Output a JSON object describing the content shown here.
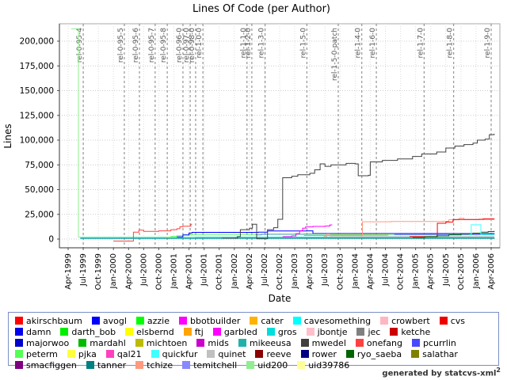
{
  "footer": {
    "text": "generated by statcvs-xml",
    "sup": "2"
  },
  "chart_data": {
    "type": "line",
    "title": "Lines Of Code (per Author)",
    "xlabel": "Date",
    "ylabel": "Lines",
    "ylim": [
      -5000,
      215000
    ],
    "grid": true,
    "legend_position": "bottom",
    "y_ticks": [
      0,
      25000,
      50000,
      75000,
      100000,
      125000,
      150000,
      175000,
      200000
    ],
    "y_tick_labels": [
      "0",
      "25,000",
      "50,000",
      "75,000",
      "100,000",
      "125,000",
      "150,000",
      "175,000",
      "200,000"
    ],
    "x_tick_labels": [
      "Apr-1999",
      "Jul-1999",
      "Oct-1999",
      "Jan-2000",
      "Apr-2000",
      "Jul-2000",
      "Oct-2000",
      "Jan-2001",
      "Apr-2001",
      "Jul-2001",
      "Oct-2001",
      "Jan-2002",
      "Apr-2002",
      "Jul-2002",
      "Oct-2002",
      "Jan-2003",
      "Apr-2003",
      "Jul-2003",
      "Oct-2003",
      "Jan-2004",
      "Apr-2004",
      "Jul-2004",
      "Oct-2004",
      "Jan-2005",
      "Apr-2005",
      "Jul-2005",
      "Oct-2005",
      "Jan-2006",
      "Apr-2006"
    ],
    "x_start_year": 1999.25,
    "x_step_years": 0.25,
    "releases": [
      {
        "label": "rel-0-95-4",
        "x": 1999.5
      },
      {
        "label": "rel-0-95-5",
        "x": 2000.18
      },
      {
        "label": "rel-0-95-6",
        "x": 2000.43
      },
      {
        "label": "rel-0-95-7",
        "x": 2000.69
      },
      {
        "label": "rel-0-95-8",
        "x": 2000.89
      },
      {
        "label": "rel-0-96-0",
        "x": 2001.15
      },
      {
        "label": "rel-0-97-0",
        "x": 2001.27
      },
      {
        "label": "rel-0-98-0",
        "x": 2001.36
      },
      {
        "label": "rel-1-0-0",
        "x": 2001.48
      },
      {
        "label": "rel-1-1-0",
        "x": 2002.21
      },
      {
        "label": "rel-1-2-0",
        "x": 2002.29
      },
      {
        "label": "rel-1-3-0",
        "x": 2002.51
      },
      {
        "label": "rel-1-5-0",
        "x": 2003.2
      },
      {
        "label": "rel-1-5-0-patch",
        "x": 2003.72
      },
      {
        "label": "rel-1-4-0",
        "x": 2004.11
      },
      {
        "label": "rel-1-6-0",
        "x": 2004.35
      },
      {
        "label": "rel-1-7-0",
        "x": 2005.14
      },
      {
        "label": "rel-1-8-0",
        "x": 2005.63
      },
      {
        "label": "rel-1-9-0",
        "x": 2006.25
      }
    ],
    "series": [
      {
        "name": "uid200",
        "color": "#90EE90",
        "points": [
          [
            1999.3,
            212500
          ],
          [
            1999.42,
            2000
          ],
          [
            2006.3,
            2000
          ]
        ]
      },
      {
        "name": "tanner",
        "color": "#008080",
        "points": [
          [
            1999.45,
            700
          ],
          [
            2006.3,
            900
          ]
        ]
      },
      {
        "name": "cavesomething",
        "color": "#00FFFF",
        "points": [
          [
            1999.45,
            1500
          ],
          [
            2006.3,
            1600
          ]
        ]
      },
      {
        "name": "onefang",
        "color": "#FF4040",
        "points": [
          [
            2000.0,
            -2000
          ],
          [
            2000.33,
            7000
          ],
          [
            2000.42,
            9000
          ],
          [
            2000.5,
            7800
          ],
          [
            2000.75,
            8300
          ],
          [
            2000.95,
            9500
          ],
          [
            2001.05,
            10500
          ],
          [
            2001.1,
            12500
          ],
          [
            2001.15,
            13000
          ],
          [
            2001.28,
            15000
          ],
          [
            2001.3,
            15000
          ]
        ]
      },
      {
        "name": "peterm",
        "color": "#55FF55",
        "points": [
          [
            2000.85,
            1600
          ],
          [
            2000.95,
            2600
          ],
          [
            2001.05,
            3400
          ],
          [
            2001.15,
            4200
          ],
          [
            2001.3,
            4700
          ],
          [
            2006.3,
            4800
          ]
        ]
      },
      {
        "name": "avogl",
        "color": "#0000FF",
        "points": [
          [
            2001.05,
            2200
          ],
          [
            2001.15,
            4200
          ],
          [
            2001.25,
            6200
          ],
          [
            2001.3,
            6800
          ],
          [
            2002.4,
            7000
          ],
          [
            2002.55,
            8200
          ],
          [
            2003.2,
            8300
          ],
          [
            2003.3,
            5600
          ],
          [
            2006.3,
            6000
          ]
        ]
      },
      {
        "name": "gros",
        "color": "#00DDDD",
        "points": [
          [
            2001.35,
            1900
          ],
          [
            2006.3,
            2100
          ]
        ]
      },
      {
        "name": "mikeeusa",
        "color": "#20B2AA",
        "points": [
          [
            2002.0,
            1100
          ],
          [
            2006.3,
            1200
          ]
        ]
      },
      {
        "name": "temitchell",
        "color": "#8888FF",
        "points": [
          [
            2002.35,
            4200
          ],
          [
            2002.45,
            5000
          ],
          [
            2003.15,
            5200
          ],
          [
            2004.6,
            5200
          ],
          [
            2004.65,
            4400
          ],
          [
            2006.3,
            4500
          ]
        ]
      },
      {
        "name": "mwedel",
        "color": "#404040",
        "points": [
          [
            2001.8,
            800
          ],
          [
            2002.05,
            2500
          ],
          [
            2002.1,
            9500
          ],
          [
            2002.25,
            11000
          ],
          [
            2002.3,
            15000
          ],
          [
            2002.37,
            300
          ],
          [
            2002.55,
            9500
          ],
          [
            2002.65,
            11500
          ],
          [
            2002.72,
            20000
          ],
          [
            2002.8,
            62000
          ],
          [
            2002.95,
            63500
          ],
          [
            2003.05,
            65000
          ],
          [
            2003.25,
            66500
          ],
          [
            2003.33,
            70000
          ],
          [
            2003.42,
            76000
          ],
          [
            2003.5,
            73500
          ],
          [
            2003.6,
            75000
          ],
          [
            2003.85,
            76500
          ],
          [
            2004.0,
            76000
          ],
          [
            2004.05,
            64000
          ],
          [
            2004.22,
            64500
          ],
          [
            2004.25,
            78000
          ],
          [
            2004.45,
            79500
          ],
          [
            2004.7,
            81000
          ],
          [
            2004.95,
            83500
          ],
          [
            2005.1,
            86000
          ],
          [
            2005.35,
            88000
          ],
          [
            2005.5,
            92000
          ],
          [
            2005.65,
            94000
          ],
          [
            2005.8,
            95500
          ],
          [
            2005.95,
            97000
          ],
          [
            2006.02,
            100000
          ],
          [
            2006.15,
            101000
          ],
          [
            2006.22,
            105500
          ],
          [
            2006.3,
            106500
          ]
        ]
      },
      {
        "name": "garbled",
        "color": "#FF00FF",
        "points": [
          [
            2002.8,
            2500
          ],
          [
            2002.95,
            3200
          ],
          [
            2003.02,
            5500
          ],
          [
            2003.08,
            8500
          ],
          [
            2003.13,
            11000
          ],
          [
            2003.18,
            12300
          ],
          [
            2003.3,
            12800
          ],
          [
            2003.5,
            13200
          ],
          [
            2003.58,
            14300
          ],
          [
            2003.62,
            14300
          ]
        ]
      },
      {
        "name": "michtoen",
        "color": "#BBBB00",
        "points": [
          [
            2003.15,
            3600
          ],
          [
            2003.6,
            3900
          ],
          [
            2004.55,
            3900
          ]
        ]
      },
      {
        "name": "crowbert",
        "color": "#FFB6C1",
        "points": [
          [
            2004.1,
            3000
          ],
          [
            2006.3,
            3100
          ]
        ]
      },
      {
        "name": "tchize",
        "color": "#FF9980",
        "points": [
          [
            2003.48,
            3000
          ],
          [
            2003.53,
            4800
          ],
          [
            2003.58,
            3200
          ],
          [
            2004.08,
            3200
          ],
          [
            2004.12,
            17500
          ],
          [
            2004.6,
            17800
          ],
          [
            2005.45,
            18000
          ],
          [
            2005.55,
            19500
          ],
          [
            2005.72,
            21000
          ],
          [
            2005.8,
            19700
          ],
          [
            2006.3,
            19800
          ]
        ]
      },
      {
        "name": "akirschbaum",
        "color": "#FF0000",
        "points": [
          [
            2004.9,
            2500
          ],
          [
            2005.33,
            2500
          ],
          [
            2005.36,
            16000
          ],
          [
            2005.5,
            17200
          ],
          [
            2005.62,
            19800
          ],
          [
            2006.05,
            20000
          ],
          [
            2006.12,
            20500
          ],
          [
            2006.3,
            20700
          ]
        ]
      },
      {
        "name": "ryo_saeba",
        "color": "#006400",
        "points": [
          [
            2004.95,
            1500
          ],
          [
            2005.15,
            2400
          ],
          [
            2005.35,
            3300
          ],
          [
            2005.55,
            4300
          ],
          [
            2005.75,
            5400
          ],
          [
            2005.95,
            6000
          ],
          [
            2006.08,
            7000
          ],
          [
            2006.2,
            7600
          ],
          [
            2006.3,
            8300
          ]
        ]
      },
      {
        "name": "quickfur",
        "color": "#40FFFF",
        "points": [
          [
            2005.88,
            4200
          ],
          [
            2005.92,
            14500
          ],
          [
            2006.05,
            14500
          ],
          [
            2006.08,
            4500
          ],
          [
            2006.3,
            4700
          ]
        ]
      }
    ]
  },
  "legend": {
    "authors": [
      {
        "label": "akirschbaum",
        "color": "#FF0000"
      },
      {
        "label": "avogl",
        "color": "#0000FF"
      },
      {
        "label": "azzie",
        "color": "#00FF00"
      },
      {
        "label": "bbotbuilder",
        "color": "#FF00FF"
      },
      {
        "label": "cater",
        "color": "#FFB300"
      },
      {
        "label": "cavesomething",
        "color": "#00FFFF"
      },
      {
        "label": "crowbert",
        "color": "#FFB6C1"
      },
      {
        "label": "cvs",
        "color": "#EE0000"
      },
      {
        "label": "damn",
        "color": "#0000EE"
      },
      {
        "label": "darth_bob",
        "color": "#00EE00"
      },
      {
        "label": "elsbernd",
        "color": "#FFFF00"
      },
      {
        "label": "ftj",
        "color": "#FFA500"
      },
      {
        "label": "garbled",
        "color": "#FF00FF"
      },
      {
        "label": "gros",
        "color": "#00DDDD"
      },
      {
        "label": "jbontje",
        "color": "#FFC0CB"
      },
      {
        "label": "jec",
        "color": "#808080"
      },
      {
        "label": "ketche",
        "color": "#CC0000"
      },
      {
        "label": "majorwoo",
        "color": "#0000CC"
      },
      {
        "label": "mardahl",
        "color": "#00BB00"
      },
      {
        "label": "michtoen",
        "color": "#BBBB00"
      },
      {
        "label": "mids",
        "color": "#CC00CC"
      },
      {
        "label": "mikeeusa",
        "color": "#20B2AA"
      },
      {
        "label": "mwedel",
        "color": "#404040"
      },
      {
        "label": "onefang",
        "color": "#FF4040"
      },
      {
        "label": "pcurrlin",
        "color": "#4848FF"
      },
      {
        "label": "peterm",
        "color": "#55FF55"
      },
      {
        "label": "pjka",
        "color": "#FFFF40"
      },
      {
        "label": "qal21",
        "color": "#FF40C0"
      },
      {
        "label": "quickfur",
        "color": "#40FFFF"
      },
      {
        "label": "quinet",
        "color": "#C0C0C0"
      },
      {
        "label": "reeve",
        "color": "#8B0000"
      },
      {
        "label": "rower",
        "color": "#000080"
      },
      {
        "label": "ryo_saeba",
        "color": "#006400"
      },
      {
        "label": "salathar",
        "color": "#808000"
      },
      {
        "label": "smacfiggen",
        "color": "#800080"
      },
      {
        "label": "tanner",
        "color": "#008080"
      },
      {
        "label": "tchize",
        "color": "#FF9980"
      },
      {
        "label": "temitchell",
        "color": "#8888FF"
      },
      {
        "label": "uid200",
        "color": "#90EE90"
      },
      {
        "label": "uid39786",
        "color": "#FFFF99"
      }
    ]
  }
}
